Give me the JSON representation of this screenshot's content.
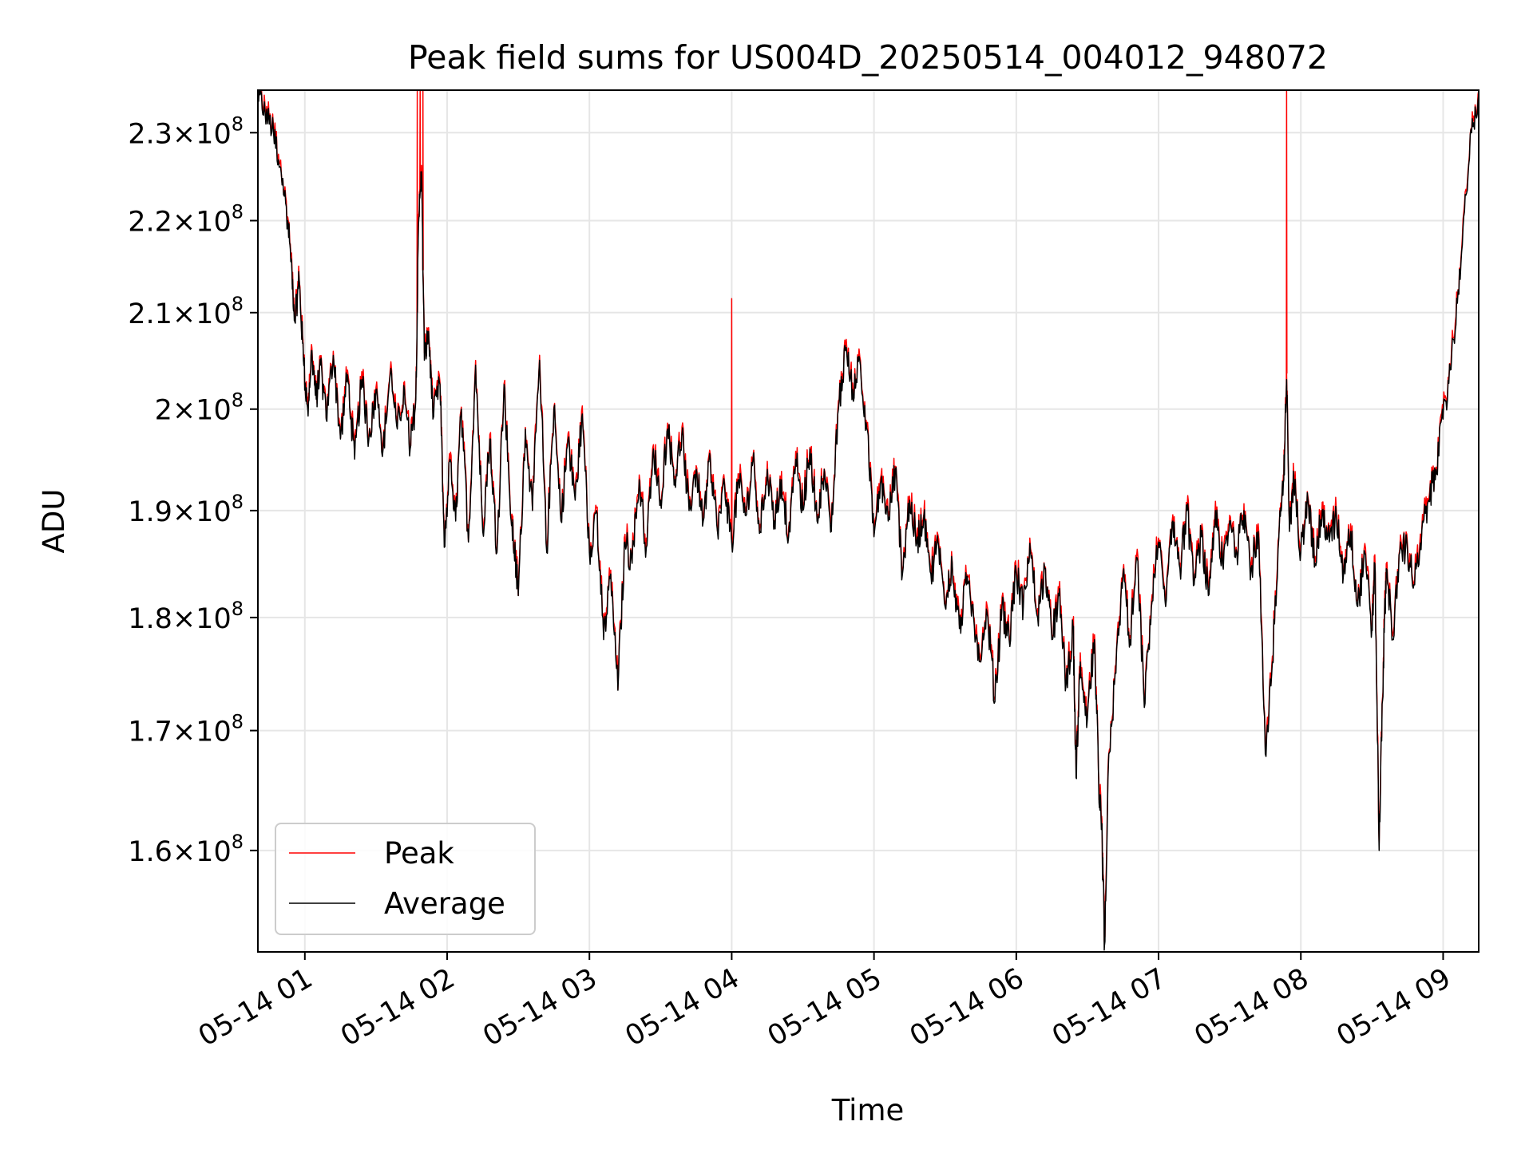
{
  "chart_data": {
    "type": "line",
    "title": "Peak field sums for US004D_20250514_004012_948072",
    "xlabel": "Time",
    "ylabel": "ADU",
    "yscale": "log",
    "grid": true,
    "legend_position": "lower-left",
    "x_unit": "hours",
    "xlim": [
      0.67,
      9.25
    ],
    "ylim": [
      152000000,
      235000000
    ],
    "x_ticks": [
      {
        "value": 1,
        "label": "05-14 01"
      },
      {
        "value": 2,
        "label": "05-14 02"
      },
      {
        "value": 3,
        "label": "05-14 03"
      },
      {
        "value": 4,
        "label": "05-14 04"
      },
      {
        "value": 5,
        "label": "05-14 05"
      },
      {
        "value": 6,
        "label": "05-14 06"
      },
      {
        "value": 7,
        "label": "05-14 07"
      },
      {
        "value": 8,
        "label": "05-14 08"
      },
      {
        "value": 9,
        "label": "05-14 09"
      }
    ],
    "y_ticks": [
      {
        "value": 160000000,
        "mant": "1.6",
        "exp": "8"
      },
      {
        "value": 170000000,
        "mant": "1.7",
        "exp": "8"
      },
      {
        "value": 180000000,
        "mant": "1.8",
        "exp": "8"
      },
      {
        "value": 190000000,
        "mant": "1.9",
        "exp": "8"
      },
      {
        "value": 200000000,
        "mant": "2",
        "exp": "8"
      },
      {
        "value": 210000000,
        "mant": "2.1",
        "exp": "8"
      },
      {
        "value": 220000000,
        "mant": "2.2",
        "exp": "8"
      },
      {
        "value": 230000000,
        "mant": "2.3",
        "exp": "8"
      }
    ],
    "series": [
      {
        "name": "Peak",
        "color": "#ff0000"
      },
      {
        "name": "Average",
        "color": "#000000"
      }
    ],
    "average_points": [
      [
        0.67,
        234.5
      ],
      [
        0.72,
        232.5
      ],
      [
        0.78,
        230.0
      ],
      [
        0.83,
        226.0
      ],
      [
        0.88,
        220.0
      ],
      [
        0.91,
        214.0
      ],
      [
        0.93,
        209.0
      ],
      [
        0.96,
        213.5
      ],
      [
        0.99,
        205.0
      ],
      [
        1.02,
        200.0
      ],
      [
        1.05,
        206.0
      ],
      [
        1.08,
        201.0
      ],
      [
        1.11,
        204.5
      ],
      [
        1.15,
        199.0
      ],
      [
        1.2,
        205.5
      ],
      [
        1.25,
        197.0
      ],
      [
        1.3,
        203.5
      ],
      [
        1.35,
        195.0
      ],
      [
        1.4,
        203.0
      ],
      [
        1.45,
        197.0
      ],
      [
        1.5,
        202.0
      ],
      [
        1.55,
        196.0
      ],
      [
        1.6,
        203.5
      ],
      [
        1.65,
        198.0
      ],
      [
        1.7,
        202.0
      ],
      [
        1.74,
        196.0
      ],
      [
        1.78,
        201.0
      ],
      [
        1.8,
        220.0
      ],
      [
        1.82,
        225.5
      ],
      [
        1.84,
        205.0
      ],
      [
        1.87,
        208.0
      ],
      [
        1.9,
        199.0
      ],
      [
        1.95,
        202.5
      ],
      [
        1.98,
        186.5
      ],
      [
        2.02,
        195.0
      ],
      [
        2.06,
        189.0
      ],
      [
        2.1,
        200.0
      ],
      [
        2.15,
        187.0
      ],
      [
        2.2,
        204.5
      ],
      [
        2.25,
        188.0
      ],
      [
        2.3,
        197.0
      ],
      [
        2.35,
        186.0
      ],
      [
        2.4,
        202.5
      ],
      [
        2.45,
        189.0
      ],
      [
        2.48,
        185.5
      ],
      [
        2.5,
        182.0
      ],
      [
        2.55,
        198.0
      ],
      [
        2.6,
        190.0
      ],
      [
        2.65,
        205.0
      ],
      [
        2.7,
        186.0
      ],
      [
        2.75,
        200.0
      ],
      [
        2.8,
        189.0
      ],
      [
        2.85,
        197.0
      ],
      [
        2.9,
        191.0
      ],
      [
        2.95,
        199.5
      ],
      [
        3.0,
        186.0
      ],
      [
        3.05,
        190.0
      ],
      [
        3.1,
        178.0
      ],
      [
        3.15,
        184.0
      ],
      [
        3.2,
        173.5
      ],
      [
        3.25,
        187.0
      ],
      [
        3.3,
        185.0
      ],
      [
        3.35,
        193.0
      ],
      [
        3.4,
        186.5
      ],
      [
        3.45,
        196.0
      ],
      [
        3.5,
        191.0
      ],
      [
        3.55,
        198.0
      ],
      [
        3.6,
        193.0
      ],
      [
        3.65,
        197.5
      ],
      [
        3.7,
        190.0
      ],
      [
        3.75,
        194.0
      ],
      [
        3.8,
        189.0
      ],
      [
        3.85,
        195.0
      ],
      [
        3.9,
        188.0
      ],
      [
        3.95,
        192.5
      ],
      [
        4.0,
        187.0
      ],
      [
        4.05,
        193.0
      ],
      [
        4.1,
        189.5
      ],
      [
        4.15,
        195.0
      ],
      [
        4.2,
        188.0
      ],
      [
        4.25,
        194.0
      ],
      [
        4.3,
        189.0
      ],
      [
        4.35,
        193.0
      ],
      [
        4.4,
        187.5
      ],
      [
        4.45,
        195.0
      ],
      [
        4.5,
        190.0
      ],
      [
        4.55,
        196.0
      ],
      [
        4.6,
        189.0
      ],
      [
        4.65,
        194.0
      ],
      [
        4.7,
        188.0
      ],
      [
        4.75,
        200.0
      ],
      [
        4.8,
        206.0
      ],
      [
        4.85,
        202.0
      ],
      [
        4.9,
        205.0
      ],
      [
        4.95,
        198.0
      ],
      [
        5.0,
        187.5
      ],
      [
        5.05,
        193.0
      ],
      [
        5.1,
        189.0
      ],
      [
        5.15,
        194.0
      ],
      [
        5.2,
        184.0
      ],
      [
        5.25,
        191.0
      ],
      [
        5.3,
        187.0
      ],
      [
        5.35,
        189.5
      ],
      [
        5.4,
        184.0
      ],
      [
        5.45,
        187.0
      ],
      [
        5.5,
        181.0
      ],
      [
        5.55,
        185.0
      ],
      [
        5.6,
        179.0
      ],
      [
        5.65,
        183.0
      ],
      [
        5.7,
        180.0
      ],
      [
        5.75,
        176.0
      ],
      [
        5.8,
        180.0
      ],
      [
        5.85,
        172.5
      ],
      [
        5.9,
        181.0
      ],
      [
        5.95,
        178.0
      ],
      [
        6.0,
        184.0
      ],
      [
        6.05,
        181.0
      ],
      [
        6.1,
        186.0
      ],
      [
        6.15,
        180.0
      ],
      [
        6.2,
        184.5
      ],
      [
        6.25,
        178.0
      ],
      [
        6.3,
        182.0
      ],
      [
        6.35,
        174.0
      ],
      [
        6.4,
        179.0
      ],
      [
        6.42,
        166.0
      ],
      [
        6.45,
        176.0
      ],
      [
        6.5,
        171.0
      ],
      [
        6.55,
        178.0
      ],
      [
        6.58,
        165.0
      ],
      [
        6.6,
        162.0
      ],
      [
        6.62,
        152.5
      ],
      [
        6.65,
        168.0
      ],
      [
        6.7,
        175.0
      ],
      [
        6.75,
        184.0
      ],
      [
        6.8,
        178.0
      ],
      [
        6.85,
        185.5
      ],
      [
        6.9,
        172.0
      ],
      [
        6.95,
        181.0
      ],
      [
        7.0,
        187.0
      ],
      [
        7.05,
        181.0
      ],
      [
        7.1,
        189.0
      ],
      [
        7.15,
        184.5
      ],
      [
        7.2,
        190.0
      ],
      [
        7.25,
        183.0
      ],
      [
        7.3,
        187.5
      ],
      [
        7.35,
        182.0
      ],
      [
        7.4,
        190.0
      ],
      [
        7.45,
        185.0
      ],
      [
        7.5,
        189.0
      ],
      [
        7.55,
        186.0
      ],
      [
        7.6,
        190.0
      ],
      [
        7.65,
        184.5
      ],
      [
        7.7,
        188.0
      ],
      [
        7.75,
        168.0
      ],
      [
        7.8,
        176.0
      ],
      [
        7.85,
        189.0
      ],
      [
        7.88,
        193.0
      ],
      [
        7.9,
        203.0
      ],
      [
        7.92,
        188.0
      ],
      [
        7.95,
        193.0
      ],
      [
        8.0,
        186.0
      ],
      [
        8.05,
        191.0
      ],
      [
        8.1,
        185.0
      ],
      [
        8.15,
        190.0
      ],
      [
        8.2,
        187.0
      ],
      [
        8.25,
        189.5
      ],
      [
        8.3,
        184.0
      ],
      [
        8.35,
        188.0
      ],
      [
        8.4,
        181.0
      ],
      [
        8.45,
        186.0
      ],
      [
        8.5,
        179.0
      ],
      [
        8.52,
        185.0
      ],
      [
        8.55,
        160.0
      ],
      [
        8.58,
        176.0
      ],
      [
        8.6,
        184.5
      ],
      [
        8.65,
        178.0
      ],
      [
        8.7,
        187.0
      ],
      [
        8.75,
        186.0
      ],
      [
        8.8,
        183.0
      ],
      [
        8.85,
        188.0
      ],
      [
        8.9,
        191.0
      ],
      [
        8.95,
        194.0
      ],
      [
        9.0,
        199.0
      ],
      [
        9.05,
        204.0
      ],
      [
        9.1,
        211.0
      ],
      [
        9.15,
        221.0
      ],
      [
        9.2,
        230.0
      ],
      [
        9.25,
        234.5
      ]
    ],
    "peak_spikes": [
      {
        "x": 1.79,
        "y": 235.0
      },
      {
        "x": 1.81,
        "y": 235.0
      },
      {
        "x": 1.83,
        "y": 235.0
      },
      {
        "x": 4.0,
        "y": 211.5
      },
      {
        "x": 7.9,
        "y": 235.0
      }
    ]
  }
}
